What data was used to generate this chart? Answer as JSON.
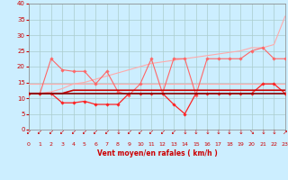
{
  "xlabel": "Vent moyen/en rafales ( km/h )",
  "xlabel_color": "#cc0000",
  "background_color": "#cceeff",
  "grid_color": "#aacccc",
  "x_ticks": [
    0,
    1,
    2,
    3,
    4,
    5,
    6,
    7,
    8,
    9,
    10,
    11,
    12,
    13,
    14,
    15,
    16,
    17,
    18,
    19,
    20,
    21,
    22,
    23
  ],
  "ylim": [
    0,
    40
  ],
  "xlim": [
    0,
    23
  ],
  "yticks": [
    0,
    5,
    10,
    15,
    20,
    25,
    30,
    35,
    40
  ],
  "arrow_labels": [
    "↙",
    "↙",
    "↙",
    "↙",
    "↙",
    "↙",
    "↙",
    "↙",
    "↓",
    "↙",
    "↙",
    "↙",
    "↙",
    "↙",
    "↓",
    "↓",
    "↓",
    "↓",
    "↓",
    "↓",
    "↘",
    "↓",
    "↓",
    "↗"
  ],
  "series": [
    {
      "color": "#ffaaaa",
      "linewidth": 0.8,
      "marker": null,
      "y": [
        14.5,
        14.5,
        14.5,
        14.5,
        14.5,
        14.5,
        14.5,
        14.5,
        14.5,
        14.5,
        14.5,
        14.5,
        14.5,
        14.5,
        14.5,
        14.5,
        14.5,
        14.5,
        14.5,
        14.5,
        14.5,
        14.5,
        14.5,
        14.5
      ]
    },
    {
      "color": "#ffaaaa",
      "linewidth": 0.8,
      "marker": null,
      "y": [
        11.5,
        11.5,
        12.0,
        13.0,
        14.5,
        15.0,
        16.0,
        17.0,
        18.0,
        19.0,
        20.0,
        21.0,
        21.5,
        22.0,
        22.5,
        23.0,
        23.5,
        24.0,
        24.5,
        25.0,
        26.0,
        26.0,
        27.0,
        36.0
      ]
    },
    {
      "color": "#ff6666",
      "linewidth": 0.8,
      "marker": "D",
      "markersize": 1.8,
      "y": [
        11.5,
        11.5,
        22.5,
        19.0,
        18.5,
        18.5,
        14.5,
        18.5,
        12.0,
        11.0,
        14.5,
        22.5,
        11.5,
        22.5,
        22.5,
        11.0,
        22.5,
        22.5,
        22.5,
        22.5,
        25.0,
        26.0,
        22.5,
        22.5
      ]
    },
    {
      "color": "#ff2222",
      "linewidth": 0.9,
      "marker": "D",
      "markersize": 1.8,
      "y": [
        11.5,
        11.5,
        11.5,
        8.5,
        8.5,
        9.0,
        8.0,
        8.0,
        8.0,
        11.5,
        11.5,
        11.5,
        11.5,
        8.0,
        5.0,
        11.5,
        11.5,
        11.5,
        11.5,
        11.5,
        11.5,
        14.5,
        14.5,
        11.5
      ]
    },
    {
      "color": "#cc0000",
      "linewidth": 1.2,
      "marker": null,
      "y": [
        11.5,
        11.5,
        11.5,
        11.5,
        12.5,
        12.5,
        12.5,
        12.5,
        12.5,
        12.5,
        12.5,
        12.5,
        12.5,
        12.5,
        12.5,
        12.5,
        12.5,
        12.5,
        12.5,
        12.5,
        12.5,
        12.5,
        12.5,
        12.5
      ]
    },
    {
      "color": "#880000",
      "linewidth": 1.2,
      "marker": null,
      "y": [
        11.5,
        11.5,
        11.5,
        11.5,
        11.5,
        11.5,
        11.5,
        11.5,
        11.5,
        11.5,
        11.5,
        11.5,
        11.5,
        11.5,
        11.5,
        11.5,
        11.5,
        11.5,
        11.5,
        11.5,
        11.5,
        11.5,
        11.5,
        11.5
      ]
    }
  ]
}
